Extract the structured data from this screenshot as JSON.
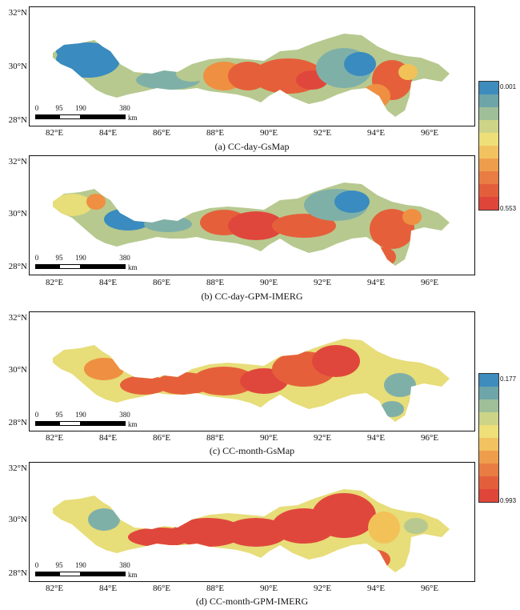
{
  "panels": [
    {
      "caption": "(a) CC-day-GsMap",
      "colors": [
        "#3a8bbf",
        "#7fb0a8",
        "#b7c98f",
        "#e7dd79",
        "#f2c258",
        "#ef8f42",
        "#e5603a",
        "#e0473c"
      ],
      "style": "day-gsmap"
    },
    {
      "caption": "(b) CC-day-GPM-IMERG",
      "colors": [
        "#3a8bbf",
        "#7fb0a8",
        "#b7c98f",
        "#e7dd79",
        "#f2c258",
        "#ef8f42",
        "#e5603a",
        "#e0473c"
      ],
      "style": "day-imerg"
    },
    {
      "caption": "(c) CC-month-GsMap",
      "colors": [
        "#3a8bbf",
        "#7fb0a8",
        "#b7c98f",
        "#e7dd79",
        "#f2c258",
        "#ef8f42",
        "#e5603a",
        "#e0473c"
      ],
      "style": "month-gsmap"
    },
    {
      "caption": "(d) CC-month-GPM-IMERG",
      "colors": [
        "#3a8bbf",
        "#7fb0a8",
        "#b7c98f",
        "#e7dd79",
        "#f2c258",
        "#ef8f42",
        "#e5603a",
        "#e0473c"
      ],
      "style": "month-imerg"
    }
  ],
  "lat_labels": [
    "32°N",
    "30°N",
    "28°N"
  ],
  "lon_labels": [
    "82°E",
    "84°E",
    "86°E",
    "88°E",
    "90°E",
    "92°E",
    "94°E",
    "96°E"
  ],
  "scalebar": {
    "ticks": [
      "0",
      "95",
      "190",
      "380"
    ],
    "unit": "km"
  },
  "legends": [
    {
      "top_label": "0.001",
      "bottom_label": "0.553"
    },
    {
      "top_label": "0.177",
      "bottom_label": "0.993"
    }
  ],
  "legend_colors": [
    "#3d8cbd",
    "#6ea5a9",
    "#9fbf99",
    "#cdd488",
    "#efdf78",
    "#f3c260",
    "#ee9d4c",
    "#e97c43",
    "#e35f3c",
    "#e0453a"
  ]
}
